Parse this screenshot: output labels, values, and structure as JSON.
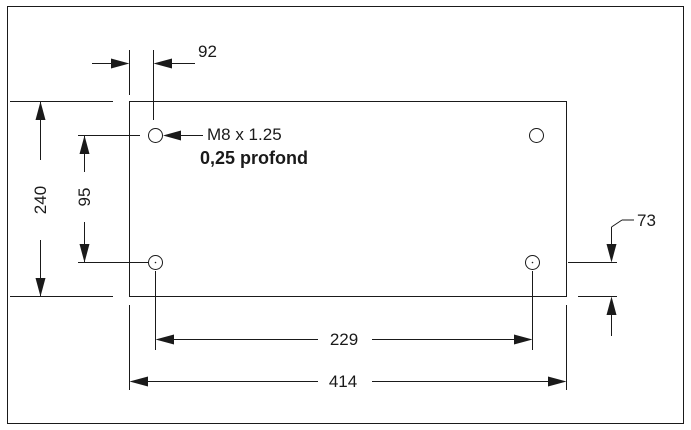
{
  "drawing": {
    "dimensions": {
      "hole_offset": "92",
      "height_total": "240",
      "hole_spacing_vertical": "95",
      "bottom_offset": "73",
      "hole_spacing_horizontal": "229",
      "width_total": "414"
    },
    "thread_note": {
      "spec": "M8 x 1.25",
      "depth": "0,25 profond"
    }
  }
}
